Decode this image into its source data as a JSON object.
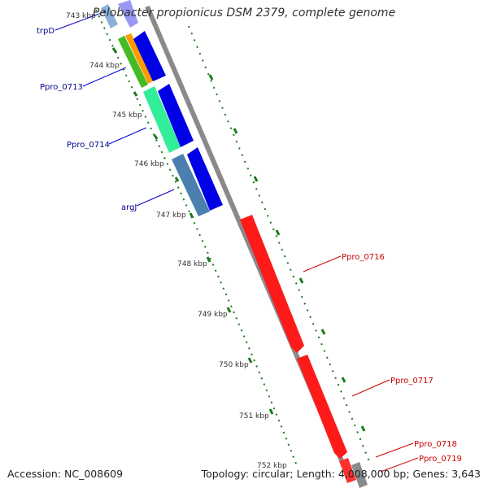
{
  "title": "Pelobacter propionicus DSM 2379, complete genome",
  "footer": {
    "accession": "Accession: NC_008609",
    "summary": "Topology: circular; Length: 4,008,000 bp; Genes: 3,643"
  },
  "tick_labels": [
    "743 kbp",
    "744 kbp",
    "745 kbp",
    "746 kbp",
    "747 kbp",
    "748 kbp",
    "749 kbp",
    "750 kbp",
    "751 kbp",
    "752 kbp"
  ],
  "genes": [
    {
      "name": "trpD",
      "color": "#00008b",
      "strand": "left"
    },
    {
      "name": "Ppro_0713",
      "color": "#00008b",
      "strand": "left"
    },
    {
      "name": "Ppro_0714",
      "color": "#00008b",
      "strand": "left"
    },
    {
      "name": "argJ",
      "color": "#00008b",
      "strand": "left"
    },
    {
      "name": "Ppro_0716",
      "color": "#cc0000",
      "strand": "right"
    },
    {
      "name": "Ppro_0717",
      "color": "#cc0000",
      "strand": "right"
    },
    {
      "name": "Ppro_0718",
      "color": "#cc0000",
      "strand": "right"
    },
    {
      "name": "Ppro_0719",
      "color": "#cc0000",
      "strand": "right"
    }
  ],
  "colors": {
    "backbone": "#8a8a8a",
    "forward_strand": "#e00000",
    "reverse_strand": "#0000e6",
    "dotted_ring": "#1a7a1a",
    "cog_green": "#44bb22",
    "cog_orange": "#ff9900",
    "cog_teal": "#33ee99",
    "cog_steel": "#4a7fb0"
  }
}
